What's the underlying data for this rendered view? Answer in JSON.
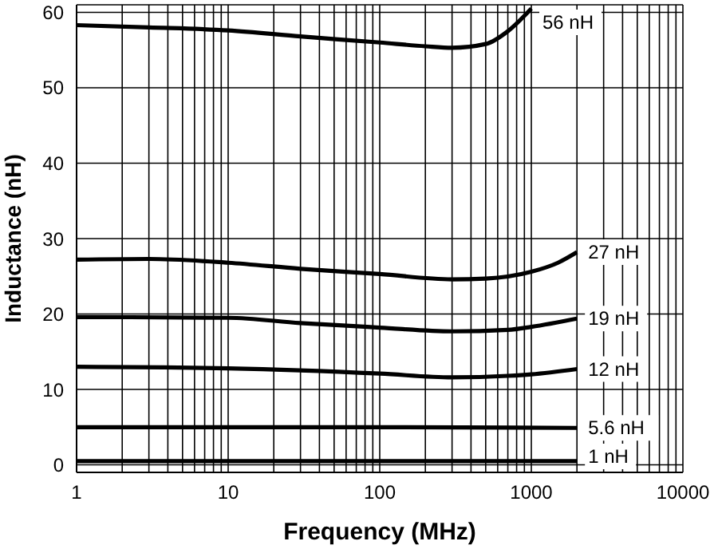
{
  "chart_data": {
    "type": "line",
    "xlabel": "Frequency (MHz)",
    "ylabel": "Inductance (nH)",
    "log": "x",
    "grid": true,
    "marker": "none",
    "line_style": "solid",
    "xlim": [
      1,
      10000
    ],
    "ylim": [
      -1,
      61
    ],
    "xticks": [
      1,
      {
        "value": 2,
        "label": null
      },
      {
        "value": 3,
        "label": null
      },
      {
        "value": 4,
        "label": null
      },
      {
        "value": 5,
        "label": null
      },
      {
        "value": 6,
        "label": null
      },
      {
        "value": 7,
        "label": null
      },
      {
        "value": 8,
        "label": null
      },
      {
        "value": 9,
        "label": null
      },
      10,
      {
        "value": 20,
        "label": null
      },
      {
        "value": 30,
        "label": null
      },
      {
        "value": 40,
        "label": null
      },
      {
        "value": 50,
        "label": null
      },
      {
        "value": 60,
        "label": null
      },
      {
        "value": 70,
        "label": null
      },
      {
        "value": 80,
        "label": null
      },
      {
        "value": 90,
        "label": null
      },
      100,
      {
        "value": 200,
        "label": null
      },
      {
        "value": 300,
        "label": null
      },
      {
        "value": 400,
        "label": null
      },
      {
        "value": 500,
        "label": null
      },
      {
        "value": 600,
        "label": null
      },
      {
        "value": 700,
        "label": null
      },
      {
        "value": 800,
        "label": null
      },
      {
        "value": 900,
        "label": null
      },
      1000,
      {
        "value": 2000,
        "label": null
      },
      {
        "value": 3000,
        "label": null
      },
      {
        "value": 4000,
        "label": null
      },
      {
        "value": 5000,
        "label": null
      },
      {
        "value": 6000,
        "label": null
      },
      {
        "value": 7000,
        "label": null
      },
      {
        "value": 8000,
        "label": null
      },
      {
        "value": 9000,
        "label": null
      },
      10000
    ],
    "yticks": [
      0,
      10,
      20,
      30,
      40,
      50,
      60
    ],
    "series": [
      {
        "name": "56 nH",
        "color": "#000000",
        "x": [
          1,
          3,
          10,
          30,
          100,
          200,
          300,
          500,
          700,
          1000
        ],
        "values": [
          58.3,
          58,
          57.6,
          56.8,
          56,
          55.5,
          55.3,
          55.8,
          57.5,
          60.5
        ]
      },
      {
        "name": "27 nH",
        "color": "#000000",
        "x": [
          1,
          3,
          10,
          30,
          100,
          300,
          500,
          1000,
          1500,
          2000
        ],
        "values": [
          27.2,
          27.3,
          26.8,
          26,
          25.3,
          24.6,
          24.7,
          25.6,
          26.8,
          28.2
        ]
      },
      {
        "name": "19 nH",
        "color": "#000000",
        "x": [
          1,
          10,
          30,
          100,
          300,
          700,
          1000,
          2000
        ],
        "values": [
          19.6,
          19.5,
          18.8,
          18.2,
          17.7,
          17.9,
          18.3,
          19.4
        ]
      },
      {
        "name": "12 nH",
        "color": "#000000",
        "x": [
          1,
          10,
          100,
          300,
          700,
          1000,
          2000
        ],
        "values": [
          13,
          12.8,
          12.1,
          11.6,
          11.8,
          12,
          12.7
        ]
      },
      {
        "name": "5.6 nH",
        "color": "#000000",
        "x": [
          1,
          100,
          2000
        ],
        "values": [
          5,
          5,
          4.9
        ]
      },
      {
        "name": "1 nH",
        "color": "#000000",
        "x": [
          1,
          100,
          2000
        ],
        "values": [
          0.5,
          0.5,
          0.5
        ]
      }
    ]
  }
}
